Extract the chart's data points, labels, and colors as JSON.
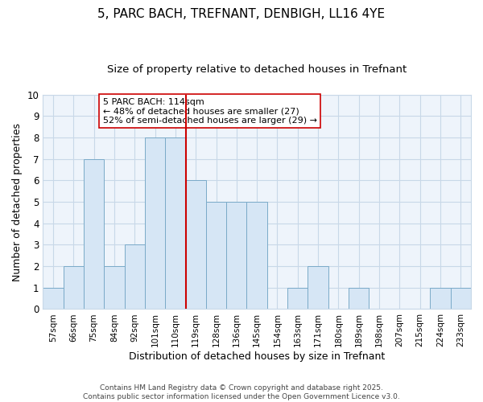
{
  "title": "5, PARC BACH, TREFNANT, DENBIGH, LL16 4YE",
  "subtitle": "Size of property relative to detached houses in Trefnant",
  "xlabel": "Distribution of detached houses by size in Trefnant",
  "ylabel": "Number of detached properties",
  "bar_labels": [
    "57sqm",
    "66sqm",
    "75sqm",
    "84sqm",
    "92sqm",
    "101sqm",
    "110sqm",
    "119sqm",
    "128sqm",
    "136sqm",
    "145sqm",
    "154sqm",
    "163sqm",
    "171sqm",
    "180sqm",
    "189sqm",
    "198sqm",
    "207sqm",
    "215sqm",
    "224sqm",
    "233sqm"
  ],
  "bar_values": [
    1,
    2,
    7,
    2,
    3,
    8,
    8,
    6,
    5,
    5,
    5,
    0,
    1,
    2,
    0,
    1,
    0,
    0,
    0,
    1,
    1
  ],
  "bar_color": "#d6e6f5",
  "bar_edgecolor": "#7aaac8",
  "vline_x": 6.5,
  "vline_color": "#cc0000",
  "annotation_text": "5 PARC BACH: 114sqm\n← 48% of detached houses are smaller (27)\n52% of semi-detached houses are larger (29) →",
  "ylim": [
    0,
    10
  ],
  "yticks": [
    0,
    1,
    2,
    3,
    4,
    5,
    6,
    7,
    8,
    9,
    10
  ],
  "grid_color": "#c8d8e8",
  "bg_color": "#ffffff",
  "plot_bg_color": "#eef4fb",
  "footer_text": "Contains HM Land Registry data © Crown copyright and database right 2025.\nContains public sector information licensed under the Open Government Licence v3.0.",
  "title_fontsize": 11,
  "subtitle_fontsize": 9.5,
  "xlabel_fontsize": 9,
  "ylabel_fontsize": 9,
  "annotation_fontsize": 8,
  "footer_fontsize": 6.5
}
